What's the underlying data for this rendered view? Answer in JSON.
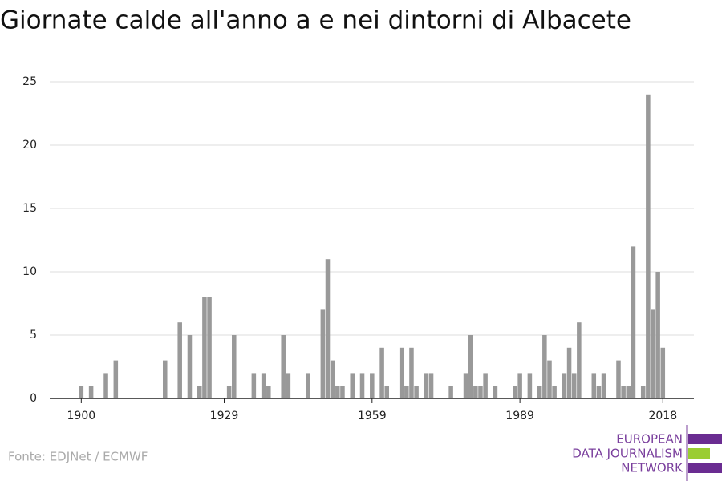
{
  "chart_data": {
    "type": "bar",
    "title": "Giornate calde all'anno a e nei dintorni di Albacete",
    "source": "Fonte: EDJNet / ECMWF",
    "logo": [
      "EUROPEAN",
      "DATA JOURNALISM",
      "NETWORK"
    ],
    "color": "#999999",
    "x": [
      1900,
      1902,
      1905,
      1907,
      1917,
      1920,
      1922,
      1924,
      1925,
      1926,
      1930,
      1931,
      1935,
      1937,
      1938,
      1941,
      1942,
      1946,
      1949,
      1950,
      1951,
      1952,
      1953,
      1955,
      1957,
      1959,
      1961,
      1962,
      1965,
      1966,
      1967,
      1968,
      1970,
      1971,
      1975,
      1978,
      1979,
      1980,
      1981,
      1982,
      1984,
      1988,
      1989,
      1991,
      1993,
      1994,
      1995,
      1996,
      1998,
      1999,
      2000,
      2001,
      2004,
      2005,
      2006,
      2009,
      2010,
      2011,
      2012,
      2014,
      2015,
      2016,
      2017,
      2018
    ],
    "values": [
      1,
      1,
      2,
      3,
      3,
      6,
      5,
      1,
      8,
      8,
      1,
      5,
      2,
      2,
      1,
      5,
      2,
      2,
      7,
      11,
      3,
      1,
      1,
      2,
      2,
      2,
      4,
      1,
      4,
      1,
      4,
      1,
      2,
      2,
      1,
      2,
      5,
      1,
      1,
      2,
      1,
      1,
      2,
      2,
      1,
      5,
      3,
      1,
      2,
      4,
      2,
      6,
      2,
      1,
      2,
      3,
      1,
      1,
      12,
      1,
      24,
      7,
      10,
      4
    ],
    "xlim": [
      1893.6,
      2024.3
    ],
    "xticks": [
      1900,
      1929,
      1959,
      1989,
      2018
    ],
    "ylim": [
      0,
      25
    ],
    "yticks": [
      0,
      5,
      10,
      15,
      20,
      25
    ],
    "grid": true
  }
}
